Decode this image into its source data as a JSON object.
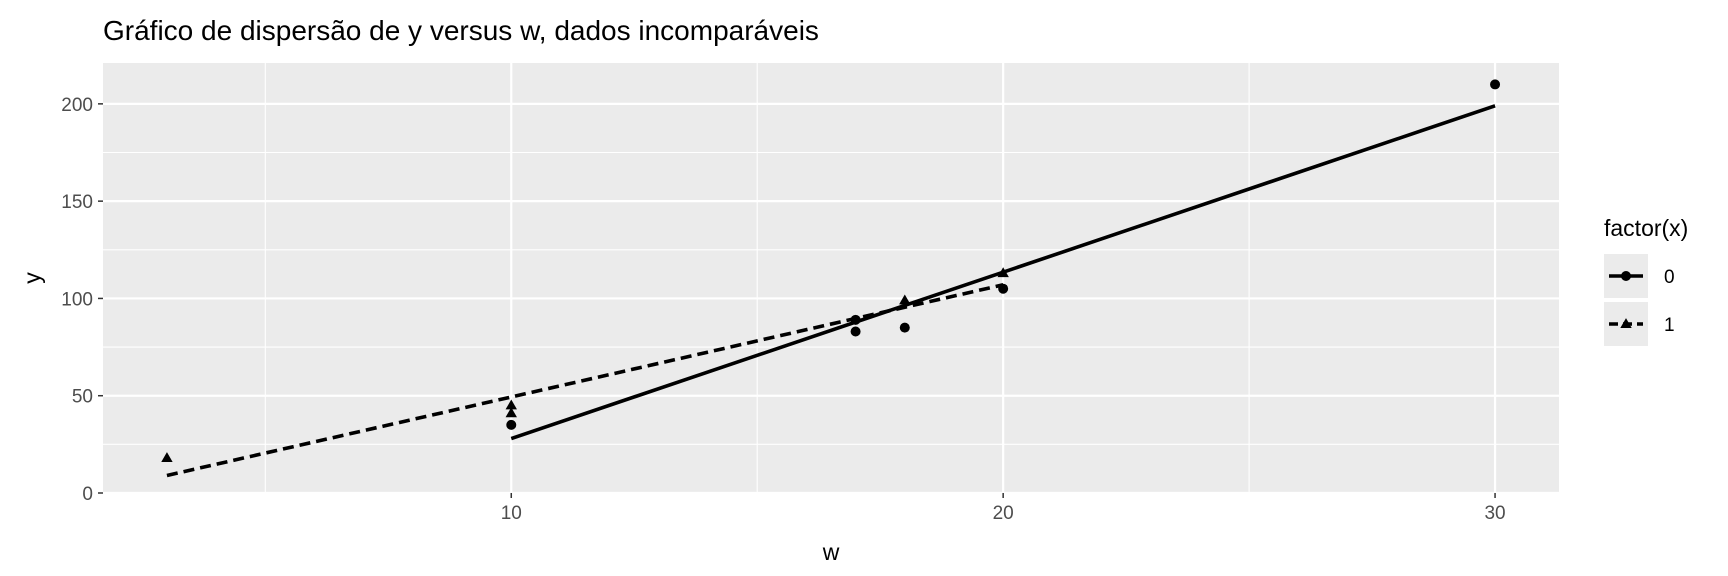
{
  "chart_data": {
    "type": "scatter",
    "title": "Gráfico de dispersão de y versus w, dados incomparáveis",
    "xlabel": "w",
    "ylabel": "y",
    "xlim": [
      1.7,
      31.3
    ],
    "ylim": [
      0,
      221
    ],
    "x_ticks": [
      10,
      20,
      30
    ],
    "y_ticks": [
      0,
      50,
      100,
      150,
      200
    ],
    "grid": true,
    "legend": {
      "title": "factor(x)",
      "position": "right"
    },
    "series": [
      {
        "name": "0",
        "marker": "circle",
        "line_style": "solid",
        "points": [
          {
            "x": 10,
            "y": 35
          },
          {
            "x": 17,
            "y": 83
          },
          {
            "x": 17,
            "y": 89
          },
          {
            "x": 18,
            "y": 85
          },
          {
            "x": 20,
            "y": 105
          },
          {
            "x": 30,
            "y": 210
          }
        ],
        "fit_line": [
          {
            "x": 10,
            "y": 28
          },
          {
            "x": 30,
            "y": 199
          }
        ]
      },
      {
        "name": "1",
        "marker": "triangle",
        "line_style": "dashed",
        "points": [
          {
            "x": 3,
            "y": 18
          },
          {
            "x": 10,
            "y": 41
          },
          {
            "x": 10,
            "y": 45
          },
          {
            "x": 18,
            "y": 99
          },
          {
            "x": 20,
            "y": 113
          }
        ],
        "fit_line": [
          {
            "x": 3,
            "y": 9
          },
          {
            "x": 20,
            "y": 107
          }
        ]
      }
    ]
  }
}
